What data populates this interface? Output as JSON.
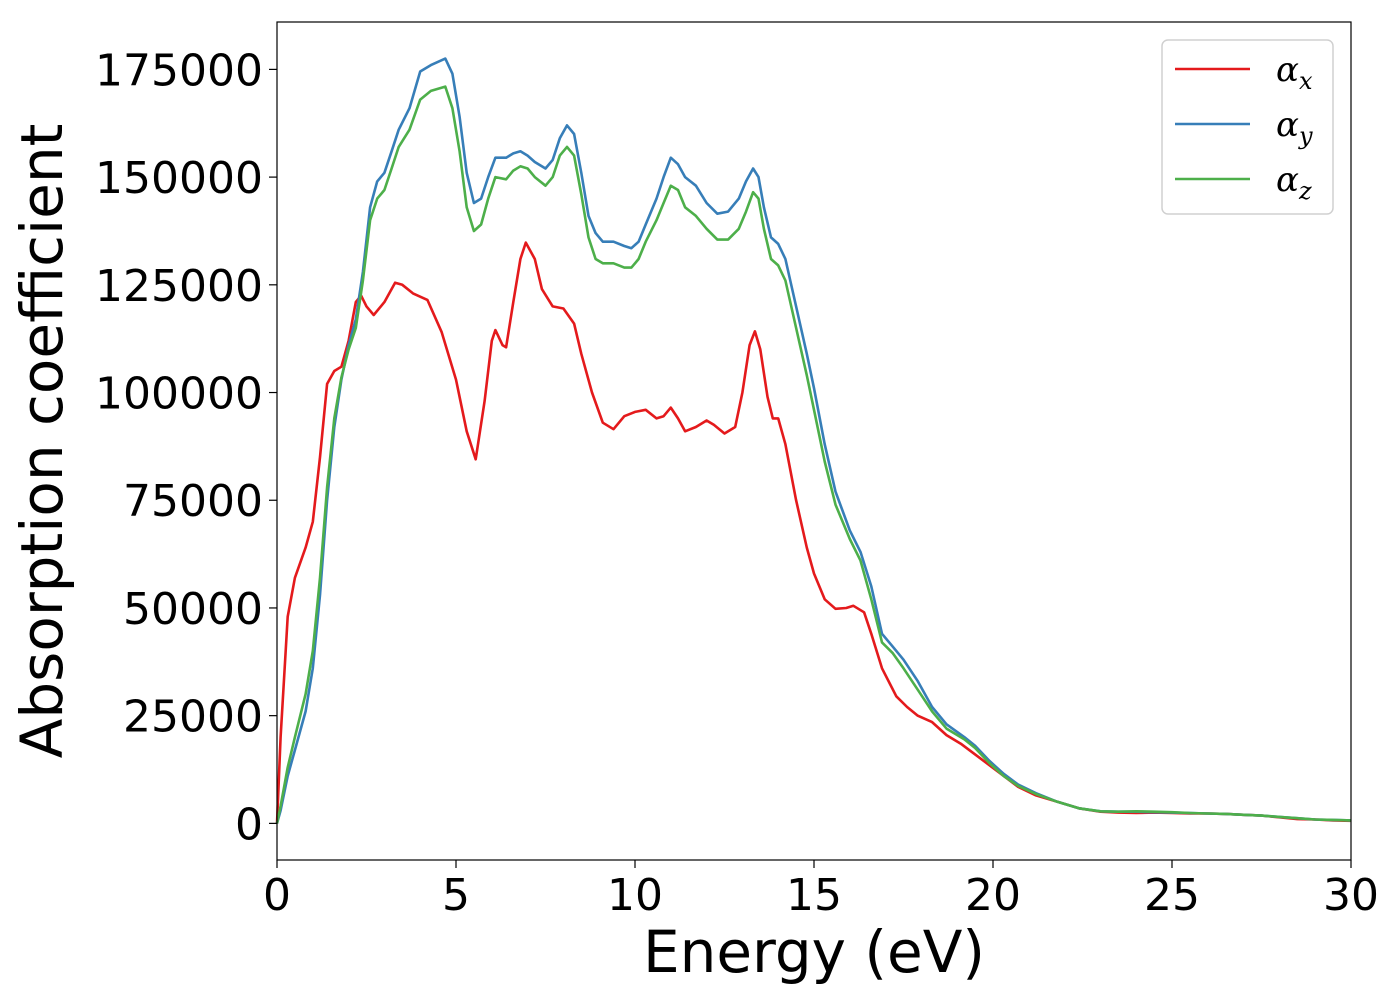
{
  "chart_data": {
    "type": "line",
    "title": "",
    "xlabel": "Energy (eV)",
    "ylabel": "Absorption coefficient",
    "xlim": [
      0,
      30
    ],
    "ylim": [
      -8500,
      186000
    ],
    "xticks": [
      0,
      5,
      10,
      15,
      20,
      25,
      30
    ],
    "yticks": [
      0,
      25000,
      50000,
      75000,
      100000,
      125000,
      150000,
      175000
    ],
    "grid": false,
    "legend": "top-right",
    "series": [
      {
        "name": "αx",
        "symbol": "α",
        "subscript": "x",
        "color": "#e41a1c",
        "points": [
          [
            0,
            0
          ],
          [
            0.1,
            20000
          ],
          [
            0.3,
            48000
          ],
          [
            0.5,
            57000
          ],
          [
            0.8,
            64000
          ],
          [
            1.0,
            70000
          ],
          [
            1.2,
            85000
          ],
          [
            1.4,
            102000
          ],
          [
            1.6,
            105000
          ],
          [
            1.8,
            106000
          ],
          [
            2.0,
            112000
          ],
          [
            2.2,
            121000
          ],
          [
            2.35,
            122500
          ],
          [
            2.5,
            120000
          ],
          [
            2.7,
            118000
          ],
          [
            3.0,
            121000
          ],
          [
            3.3,
            125500
          ],
          [
            3.5,
            125000
          ],
          [
            3.8,
            123000
          ],
          [
            4.2,
            121500
          ],
          [
            4.6,
            114000
          ],
          [
            5.0,
            103000
          ],
          [
            5.3,
            91000
          ],
          [
            5.55,
            84500
          ],
          [
            5.8,
            98000
          ],
          [
            6.0,
            112000
          ],
          [
            6.1,
            114500
          ],
          [
            6.3,
            111000
          ],
          [
            6.4,
            110500
          ],
          [
            6.6,
            121000
          ],
          [
            6.8,
            131000
          ],
          [
            6.95,
            134800
          ],
          [
            7.2,
            131000
          ],
          [
            7.4,
            124000
          ],
          [
            7.7,
            120000
          ],
          [
            8.0,
            119500
          ],
          [
            8.3,
            116000
          ],
          [
            8.5,
            109000
          ],
          [
            8.8,
            100000
          ],
          [
            9.1,
            93000
          ],
          [
            9.4,
            91500
          ],
          [
            9.7,
            94500
          ],
          [
            10.0,
            95500
          ],
          [
            10.3,
            96000
          ],
          [
            10.6,
            94000
          ],
          [
            10.8,
            94500
          ],
          [
            11.0,
            96500
          ],
          [
            11.2,
            94000
          ],
          [
            11.4,
            91000
          ],
          [
            11.7,
            92000
          ],
          [
            12.0,
            93500
          ],
          [
            12.2,
            92500
          ],
          [
            12.5,
            90500
          ],
          [
            12.8,
            92000
          ],
          [
            13.0,
            100000
          ],
          [
            13.2,
            111000
          ],
          [
            13.35,
            114200
          ],
          [
            13.5,
            110000
          ],
          [
            13.7,
            99000
          ],
          [
            13.85,
            94000
          ],
          [
            14.0,
            94000
          ],
          [
            14.2,
            88000
          ],
          [
            14.5,
            75000
          ],
          [
            14.8,
            64000
          ],
          [
            15.0,
            58000
          ],
          [
            15.3,
            52000
          ],
          [
            15.6,
            49800
          ],
          [
            15.9,
            50000
          ],
          [
            16.1,
            50500
          ],
          [
            16.4,
            49000
          ],
          [
            16.6,
            44000
          ],
          [
            16.9,
            36000
          ],
          [
            17.3,
            29500
          ],
          [
            17.6,
            27000
          ],
          [
            17.9,
            25000
          ],
          [
            18.3,
            23500
          ],
          [
            18.7,
            20500
          ],
          [
            19.1,
            18500
          ],
          [
            19.5,
            16000
          ],
          [
            19.9,
            13500
          ],
          [
            20.3,
            11000
          ],
          [
            20.7,
            8500
          ],
          [
            21.2,
            6500
          ],
          [
            21.8,
            5000
          ],
          [
            22.4,
            3500
          ],
          [
            23.0,
            2700
          ],
          [
            23.5,
            2500
          ],
          [
            24.0,
            2400
          ],
          [
            24.5,
            2500
          ],
          [
            25.0,
            2400
          ],
          [
            25.5,
            2300
          ],
          [
            26.0,
            2300
          ],
          [
            26.5,
            2200
          ],
          [
            27.0,
            2000
          ],
          [
            27.5,
            1800
          ],
          [
            28.0,
            1400
          ],
          [
            28.5,
            1000
          ],
          [
            29.0,
            900
          ],
          [
            29.5,
            700
          ],
          [
            30,
            600
          ]
        ]
      },
      {
        "name": "αy",
        "symbol": "α",
        "subscript": "y",
        "color": "#377eb8",
        "points": [
          [
            0,
            0
          ],
          [
            0.1,
            3000
          ],
          [
            0.3,
            11000
          ],
          [
            0.5,
            17000
          ],
          [
            0.8,
            26000
          ],
          [
            1.0,
            36000
          ],
          [
            1.2,
            53000
          ],
          [
            1.4,
            75000
          ],
          [
            1.6,
            92000
          ],
          [
            1.8,
            103000
          ],
          [
            2.0,
            111000
          ],
          [
            2.2,
            117000
          ],
          [
            2.4,
            128000
          ],
          [
            2.6,
            143000
          ],
          [
            2.8,
            149000
          ],
          [
            3.0,
            151000
          ],
          [
            3.2,
            156000
          ],
          [
            3.4,
            161000
          ],
          [
            3.7,
            166000
          ],
          [
            4.0,
            174500
          ],
          [
            4.3,
            176000
          ],
          [
            4.7,
            177500
          ],
          [
            4.9,
            174000
          ],
          [
            5.1,
            164000
          ],
          [
            5.3,
            151000
          ],
          [
            5.5,
            144000
          ],
          [
            5.7,
            145000
          ],
          [
            5.9,
            150000
          ],
          [
            6.1,
            154500
          ],
          [
            6.4,
            154500
          ],
          [
            6.6,
            155500
          ],
          [
            6.8,
            156000
          ],
          [
            7.0,
            155000
          ],
          [
            7.2,
            153500
          ],
          [
            7.5,
            152000
          ],
          [
            7.7,
            154000
          ],
          [
            7.9,
            159000
          ],
          [
            8.1,
            162000
          ],
          [
            8.3,
            160000
          ],
          [
            8.5,
            151000
          ],
          [
            8.7,
            141000
          ],
          [
            8.9,
            137000
          ],
          [
            9.1,
            135000
          ],
          [
            9.4,
            135000
          ],
          [
            9.7,
            134000
          ],
          [
            9.9,
            133500
          ],
          [
            10.1,
            135000
          ],
          [
            10.3,
            139000
          ],
          [
            10.6,
            145000
          ],
          [
            10.8,
            150000
          ],
          [
            11.0,
            154500
          ],
          [
            11.2,
            153000
          ],
          [
            11.4,
            150000
          ],
          [
            11.7,
            148000
          ],
          [
            12.0,
            144000
          ],
          [
            12.3,
            141500
          ],
          [
            12.6,
            142000
          ],
          [
            12.9,
            145000
          ],
          [
            13.1,
            149000
          ],
          [
            13.3,
            152000
          ],
          [
            13.45,
            150000
          ],
          [
            13.6,
            143000
          ],
          [
            13.8,
            136000
          ],
          [
            14.0,
            134500
          ],
          [
            14.2,
            131000
          ],
          [
            14.5,
            120000
          ],
          [
            14.8,
            109000
          ],
          [
            15.0,
            101000
          ],
          [
            15.3,
            88000
          ],
          [
            15.6,
            77000
          ],
          [
            16.0,
            68000
          ],
          [
            16.3,
            63000
          ],
          [
            16.6,
            55000
          ],
          [
            16.9,
            44000
          ],
          [
            17.2,
            41000
          ],
          [
            17.5,
            38000
          ],
          [
            17.9,
            33000
          ],
          [
            18.3,
            27000
          ],
          [
            18.7,
            23000
          ],
          [
            19.2,
            20000
          ],
          [
            19.5,
            18000
          ],
          [
            19.9,
            14500
          ],
          [
            20.3,
            11500
          ],
          [
            20.7,
            9000
          ],
          [
            21.2,
            7000
          ],
          [
            21.8,
            5000
          ],
          [
            22.4,
            3500
          ],
          [
            23.0,
            2800
          ],
          [
            23.5,
            2700
          ],
          [
            24.0,
            2700
          ],
          [
            24.5,
            2600
          ],
          [
            25.0,
            2500
          ],
          [
            25.5,
            2400
          ],
          [
            26.0,
            2300
          ],
          [
            26.5,
            2200
          ],
          [
            27.0,
            2000
          ],
          [
            27.5,
            1800
          ],
          [
            28.0,
            1500
          ],
          [
            28.5,
            1200
          ],
          [
            29.0,
            900
          ],
          [
            29.5,
            800
          ],
          [
            30,
            700
          ]
        ]
      },
      {
        "name": "αz",
        "symbol": "α",
        "subscript": "z",
        "color": "#4daf4a",
        "points": [
          [
            0,
            0
          ],
          [
            0.1,
            4000
          ],
          [
            0.3,
            13000
          ],
          [
            0.5,
            20000
          ],
          [
            0.8,
            30000
          ],
          [
            1.0,
            40000
          ],
          [
            1.2,
            57000
          ],
          [
            1.4,
            78000
          ],
          [
            1.6,
            94000
          ],
          [
            1.8,
            103500
          ],
          [
            2.0,
            110000
          ],
          [
            2.2,
            115000
          ],
          [
            2.4,
            126000
          ],
          [
            2.6,
            140000
          ],
          [
            2.8,
            145000
          ],
          [
            3.0,
            147000
          ],
          [
            3.2,
            152000
          ],
          [
            3.4,
            157000
          ],
          [
            3.7,
            161000
          ],
          [
            4.0,
            168000
          ],
          [
            4.3,
            170000
          ],
          [
            4.7,
            171000
          ],
          [
            4.9,
            166000
          ],
          [
            5.1,
            156000
          ],
          [
            5.3,
            143000
          ],
          [
            5.5,
            137500
          ],
          [
            5.7,
            139000
          ],
          [
            5.9,
            145000
          ],
          [
            6.1,
            150000
          ],
          [
            6.4,
            149500
          ],
          [
            6.6,
            151500
          ],
          [
            6.8,
            152500
          ],
          [
            7.0,
            152000
          ],
          [
            7.2,
            150000
          ],
          [
            7.5,
            148000
          ],
          [
            7.7,
            150000
          ],
          [
            7.9,
            155000
          ],
          [
            8.1,
            157000
          ],
          [
            8.3,
            155000
          ],
          [
            8.5,
            146000
          ],
          [
            8.7,
            136000
          ],
          [
            8.9,
            131000
          ],
          [
            9.1,
            130000
          ],
          [
            9.4,
            130000
          ],
          [
            9.7,
            129000
          ],
          [
            9.9,
            129000
          ],
          [
            10.1,
            131000
          ],
          [
            10.3,
            135000
          ],
          [
            10.6,
            140000
          ],
          [
            10.8,
            144000
          ],
          [
            11.0,
            148000
          ],
          [
            11.2,
            147000
          ],
          [
            11.4,
            143000
          ],
          [
            11.7,
            141000
          ],
          [
            12.0,
            138000
          ],
          [
            12.3,
            135500
          ],
          [
            12.6,
            135500
          ],
          [
            12.9,
            138000
          ],
          [
            13.1,
            142000
          ],
          [
            13.3,
            146500
          ],
          [
            13.45,
            145000
          ],
          [
            13.6,
            138000
          ],
          [
            13.8,
            131000
          ],
          [
            14.0,
            129500
          ],
          [
            14.2,
            126000
          ],
          [
            14.5,
            115000
          ],
          [
            14.8,
            104000
          ],
          [
            15.0,
            96000
          ],
          [
            15.3,
            84000
          ],
          [
            15.6,
            74000
          ],
          [
            16.0,
            66000
          ],
          [
            16.3,
            61000
          ],
          [
            16.6,
            52000
          ],
          [
            16.9,
            42000
          ],
          [
            17.2,
            39500
          ],
          [
            17.5,
            36000
          ],
          [
            17.9,
            31000
          ],
          [
            18.3,
            26000
          ],
          [
            18.7,
            22000
          ],
          [
            19.2,
            19500
          ],
          [
            19.5,
            17500
          ],
          [
            19.9,
            14000
          ],
          [
            20.3,
            11000
          ],
          [
            20.7,
            8700
          ],
          [
            21.2,
            6800
          ],
          [
            21.8,
            5000
          ],
          [
            22.4,
            3500
          ],
          [
            23.0,
            2800
          ],
          [
            23.5,
            2700
          ],
          [
            24.0,
            2800
          ],
          [
            24.5,
            2700
          ],
          [
            25.0,
            2600
          ],
          [
            25.5,
            2400
          ],
          [
            26.0,
            2300
          ],
          [
            26.5,
            2200
          ],
          [
            27.0,
            2000
          ],
          [
            27.5,
            1800
          ],
          [
            28.0,
            1500
          ],
          [
            28.5,
            1200
          ],
          [
            29.0,
            900
          ],
          [
            29.5,
            800
          ],
          [
            30,
            700
          ]
        ]
      }
    ]
  }
}
